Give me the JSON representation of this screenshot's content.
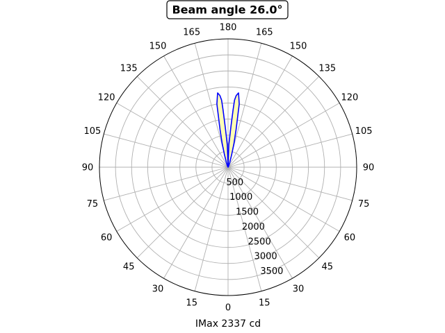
{
  "chart_data": {
    "type": "polar-line",
    "title": "Beam angle 26.0°",
    "xlabel": "IMax 2337 cd",
    "theta_tick_labels_right": [
      "0",
      "15",
      "30",
      "45",
      "60",
      "75",
      "90",
      "105",
      "120",
      "135",
      "150",
      "165",
      "180"
    ],
    "theta_tick_labels_left": [
      "15",
      "30",
      "45",
      "60",
      "75",
      "90",
      "105",
      "120",
      "135",
      "150",
      "165"
    ],
    "r_ticks": [
      500,
      1000,
      1500,
      2000,
      2500,
      3000,
      3500
    ],
    "r_max": 4000,
    "series": [
      {
        "color": "#0000ff",
        "fill_color": "#ffffb3",
        "points": [
          {
            "angle": 0,
            "value": 0
          },
          {
            "angle": 2,
            "value": 700
          },
          {
            "angle": 4,
            "value": 1250
          },
          {
            "angle": 5,
            "value": 1800
          },
          {
            "angle": 5.5,
            "value": 2100
          },
          {
            "angle": 6.5,
            "value": 2250
          },
          {
            "angle": 8,
            "value": 2337
          },
          {
            "angle": 10,
            "value": 2000
          },
          {
            "angle": 12,
            "value": 1200
          },
          {
            "angle": 14,
            "value": 750
          },
          {
            "angle": 16,
            "value": 400
          },
          {
            "angle": 20,
            "value": 150
          },
          {
            "angle": 30,
            "value": 30
          },
          {
            "angle": 45,
            "value": 0
          }
        ]
      }
    ],
    "grid": true
  },
  "colors": {
    "curve": "#0000ff",
    "fill": "#ffffb3",
    "grid": "#b0b0b0"
  }
}
